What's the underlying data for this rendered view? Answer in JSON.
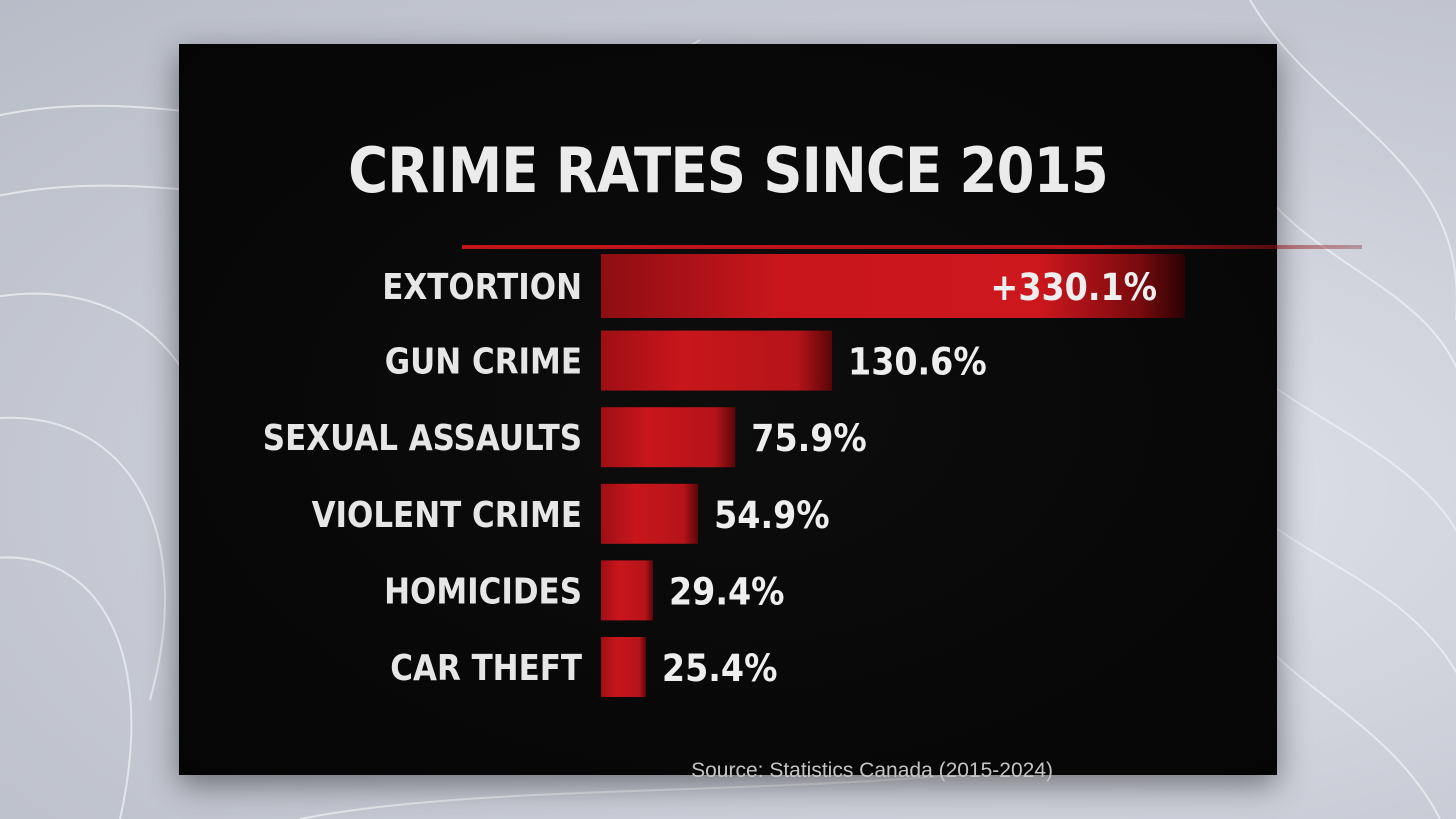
{
  "colors": {
    "bar": "#c8161c",
    "background": "#050505",
    "text": "#ebebeb",
    "accent_rule": "#c0151b"
  },
  "header": {
    "title": "CRIME RATES SINCE 2015"
  },
  "chart_data": {
    "type": "bar",
    "orientation": "horizontal",
    "title": "CRIME RATES SINCE 2015",
    "categories": [
      "EXTORTION",
      "GUN CRIME",
      "SEXUAL ASSAULTS",
      "VIOLENT CRIME",
      "HOMICIDES",
      "CAR THEFT"
    ],
    "values": [
      330.1,
      130.6,
      75.9,
      54.9,
      29.4,
      25.4
    ],
    "value_labels": [
      "+330.1%",
      "130.6%",
      "75.9%",
      "54.9%",
      "29.4%",
      "25.4%"
    ],
    "unit": "%",
    "grid": false,
    "legend": "none"
  },
  "footer": {
    "source": "Source: Statistics Canada (2015-2024)"
  }
}
